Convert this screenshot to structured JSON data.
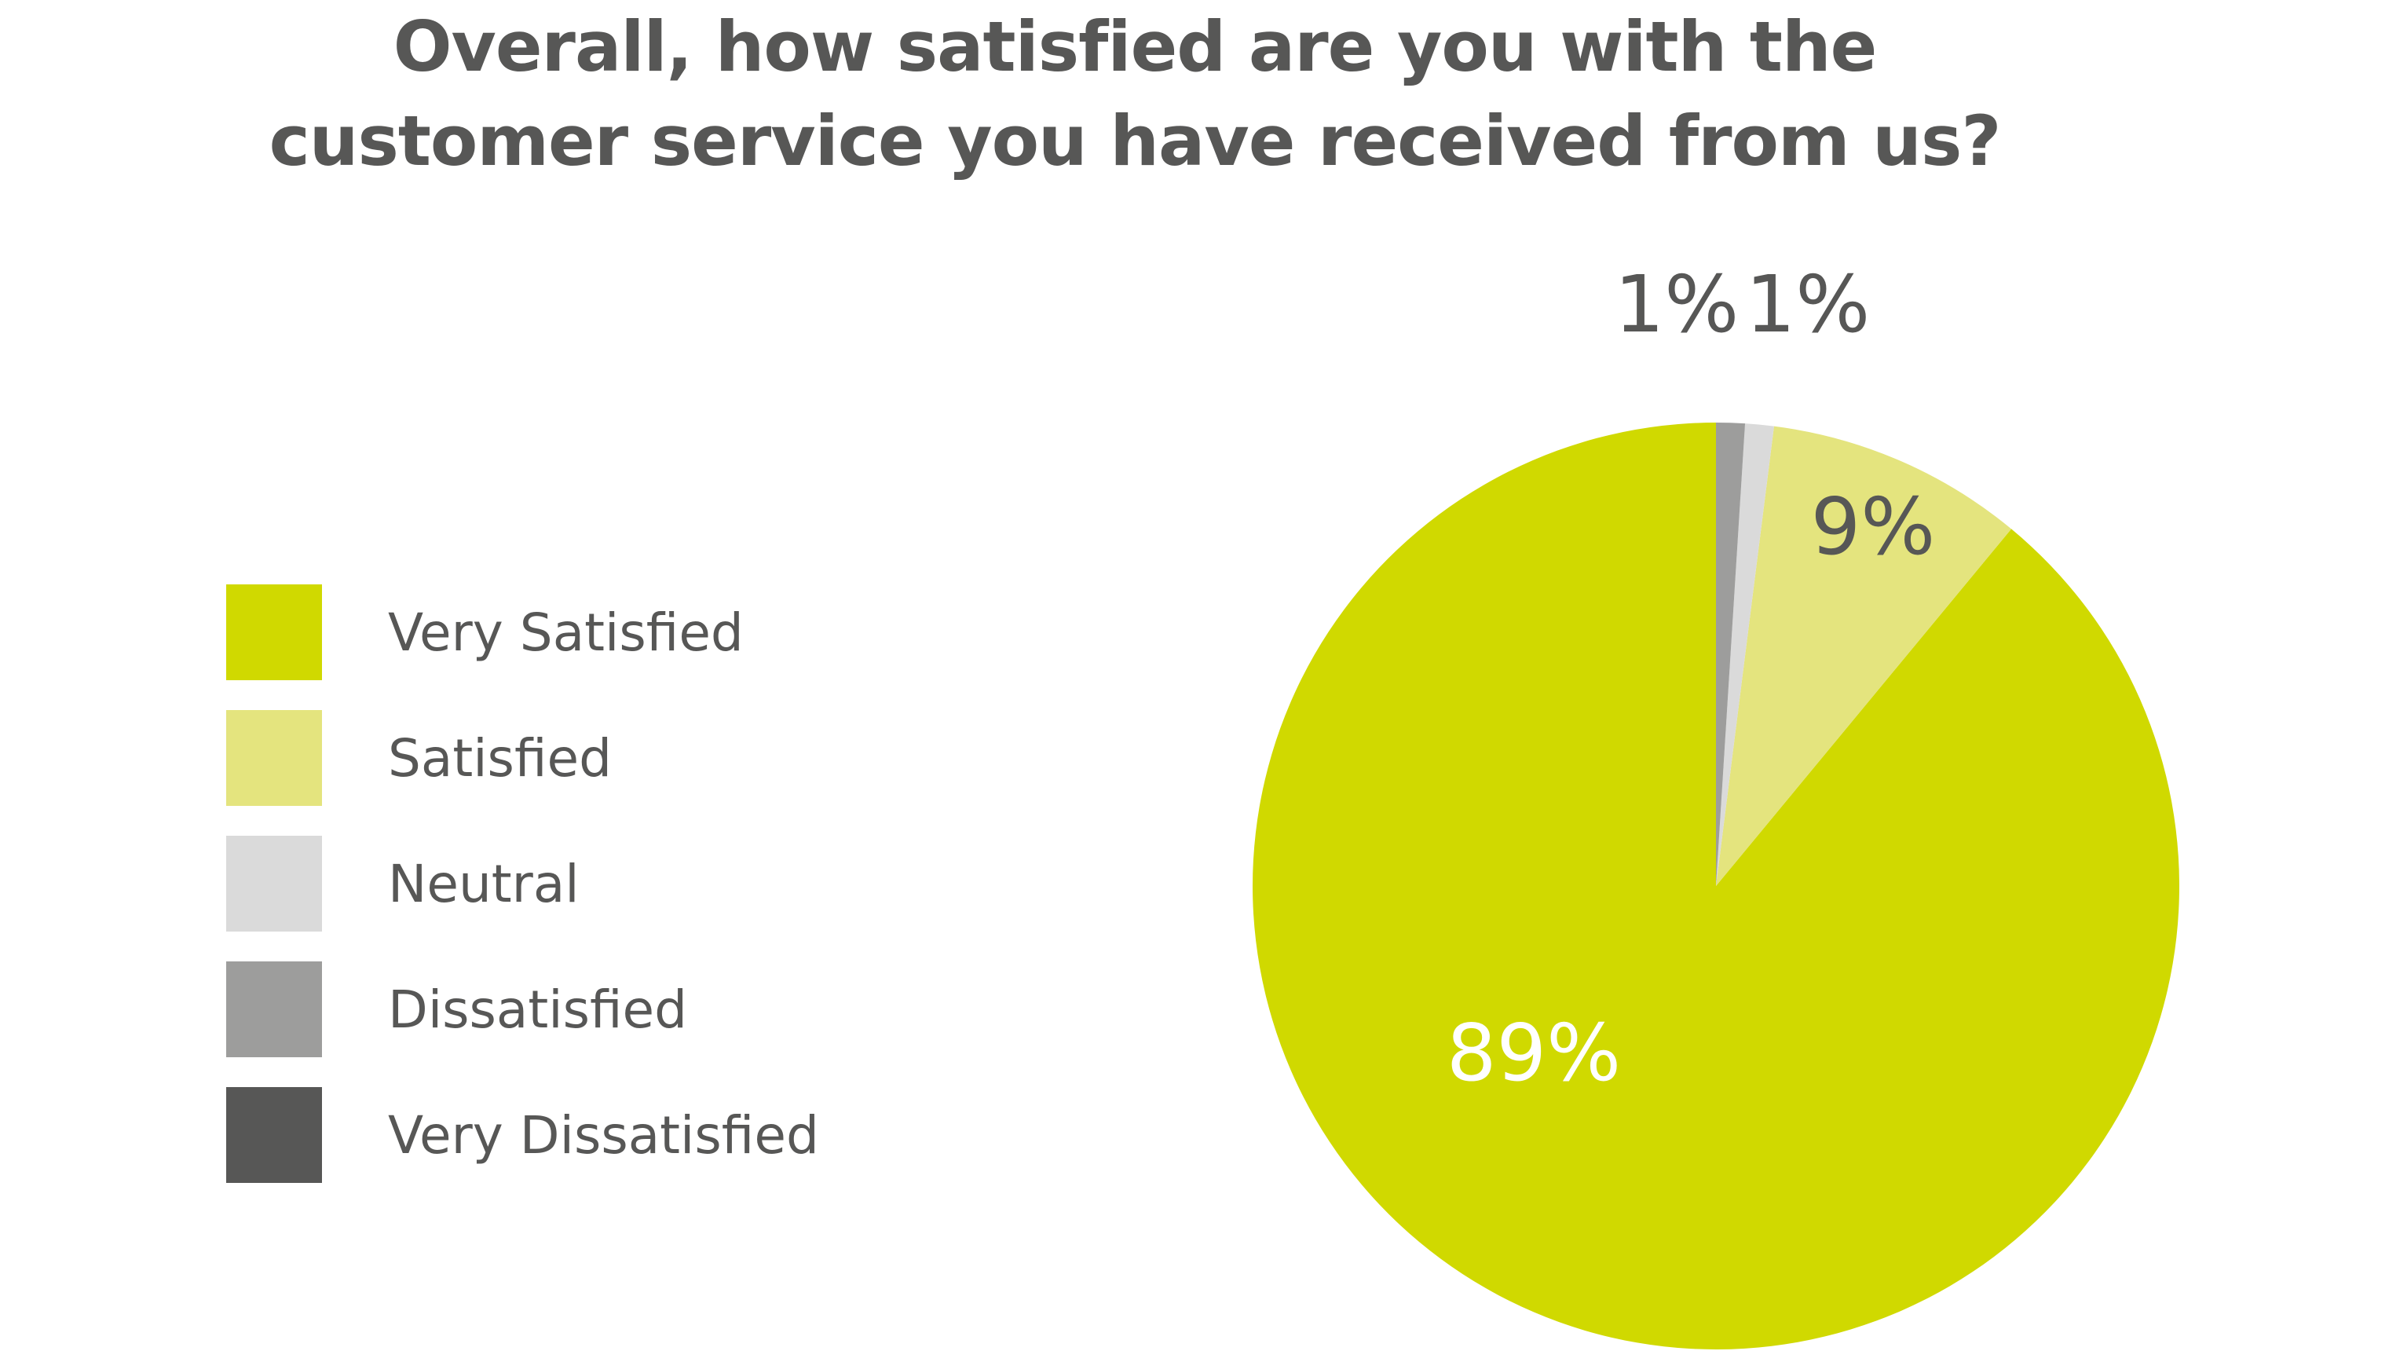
{
  "chart_data": {
    "type": "pie",
    "title_lines": [
      "Overall, how satisfied are you with the",
      "customer service you have received from us?"
    ],
    "legend_placement": "left",
    "start_angle_deg": 0,
    "direction": "counterclockwise-from-top",
    "slices": [
      {
        "name": "Very Satisfied",
        "value": 89,
        "label": "89%",
        "color": "#d0d900",
        "label_color": "#ffffff"
      },
      {
        "name": "Satisfied",
        "value": 9,
        "label": "9%",
        "color": "#e4e47e",
        "label_color": "#575756"
      },
      {
        "name": "Neutral",
        "value": 1,
        "label": "1%",
        "color": "#dadada",
        "label_color": "#575756"
      },
      {
        "name": "Dissatisfied",
        "value": 1,
        "label": "1%",
        "color": "#9d9d9c",
        "label_color": "#575756"
      },
      {
        "name": "Very Dissatisfied",
        "value": 0,
        "label": "",
        "color": "#575756",
        "label_color": "#575756"
      }
    ]
  }
}
